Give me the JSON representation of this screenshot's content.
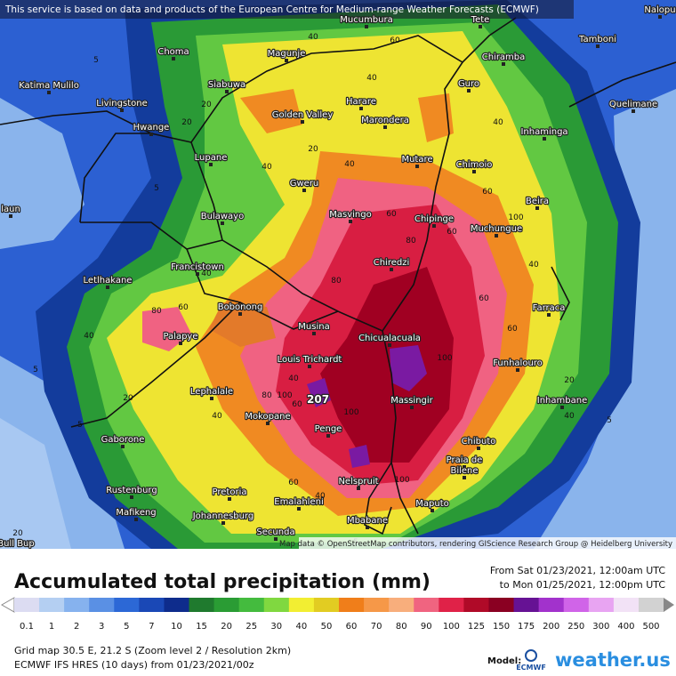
{
  "map": {
    "notice": "This service is based on data and products of the European Centre for Medium-range Weather Forecasts (ECMWF)",
    "attribution": "Map data © OpenStreetMap contributors, rendering GIScience Research Group @ Heidelberg University",
    "places": [
      "Nalopu",
      "Mucumbura",
      "Tete",
      "Tamboni",
      "Choma",
      "Magunje",
      "Chiramba",
      "Katima Mulilo",
      "Siabuwa",
      "Guro",
      "Livingstone",
      "Harare",
      "Quelimane",
      "Golden Valley",
      "Marondera",
      "Hwange",
      "Inhaminga",
      "Lupane",
      "Mutare",
      "Chimoio",
      "Gweru",
      "Beira",
      "laun",
      "Bulawayo",
      "Masvingo",
      "Chipinge",
      "Muchungue",
      "Chiredzi",
      "Francistown",
      "Letlhakane",
      "Bobonong",
      "Farraca",
      "Musina",
      "Palapye",
      "Chicualacuala",
      "Funhalouro",
      "Louis Trichardt",
      "Lephalale",
      "Inhambane",
      "Massingir",
      "Mokopane",
      "Penge",
      "Gaborone",
      "Chibuto",
      "Praia de",
      "Bilene",
      "Nelspruit",
      "Rustenburg",
      "Pretoria",
      "Emalahleni",
      "Maputo",
      "Mafikeng",
      "Johannesburg",
      "Mbabane",
      "Secunda",
      "Bull Bup"
    ],
    "contour_labels": [
      "40",
      "60",
      "40",
      "20",
      "40",
      "40",
      "20",
      "5",
      "20",
      "5",
      "40",
      "60",
      "60",
      "100",
      "80",
      "60",
      "80",
      "60",
      "60",
      "40",
      "80",
      "60",
      "40",
      "40",
      "20",
      "5",
      "80",
      "100",
      "60",
      "100",
      "100",
      "100",
      "40",
      "20",
      "5",
      "40",
      "60",
      "40",
      "5",
      "20",
      "40",
      "5"
    ],
    "peak_label": "207"
  },
  "panel": {
    "title": "Accumulated total precipitation (mm)",
    "from": "From Sat 01/23/2021, 12:00am UTC",
    "to": "to Mon 01/25/2021, 12:00pm UTC",
    "grid": "Grid map 30.5 E, 21.2 S (Zoom level 2 / Resolution 2km)",
    "model_run": "ECMWF IFS HRES (10 days) from 01/23/2021/00z",
    "model_label": "Model:",
    "ecmwf": "ECMWF",
    "brand": "weather.us"
  },
  "legend": {
    "values": [
      0.1,
      1,
      2,
      3,
      5,
      7,
      10,
      15,
      20,
      25,
      30,
      40,
      50,
      60,
      70,
      80,
      90,
      100,
      125,
      150,
      175,
      200,
      250,
      300,
      400,
      500
    ],
    "colors": [
      "#dcdcf2",
      "#b4cff2",
      "#86b2ee",
      "#5a90e4",
      "#2c68d6",
      "#1a48b6",
      "#0e2c8c",
      "#1f7a2e",
      "#2a9c34",
      "#44bb3e",
      "#80d840",
      "#f2ee32",
      "#e2cc22",
      "#f07e1a",
      "#f69848",
      "#f8ae7c",
      "#f06480",
      "#e02248",
      "#b00a28",
      "#8a0022",
      "#661294",
      "#a232cc",
      "#d064e8",
      "#e8a4f2",
      "#f2e2f6",
      "#d2d2d2"
    ]
  }
}
